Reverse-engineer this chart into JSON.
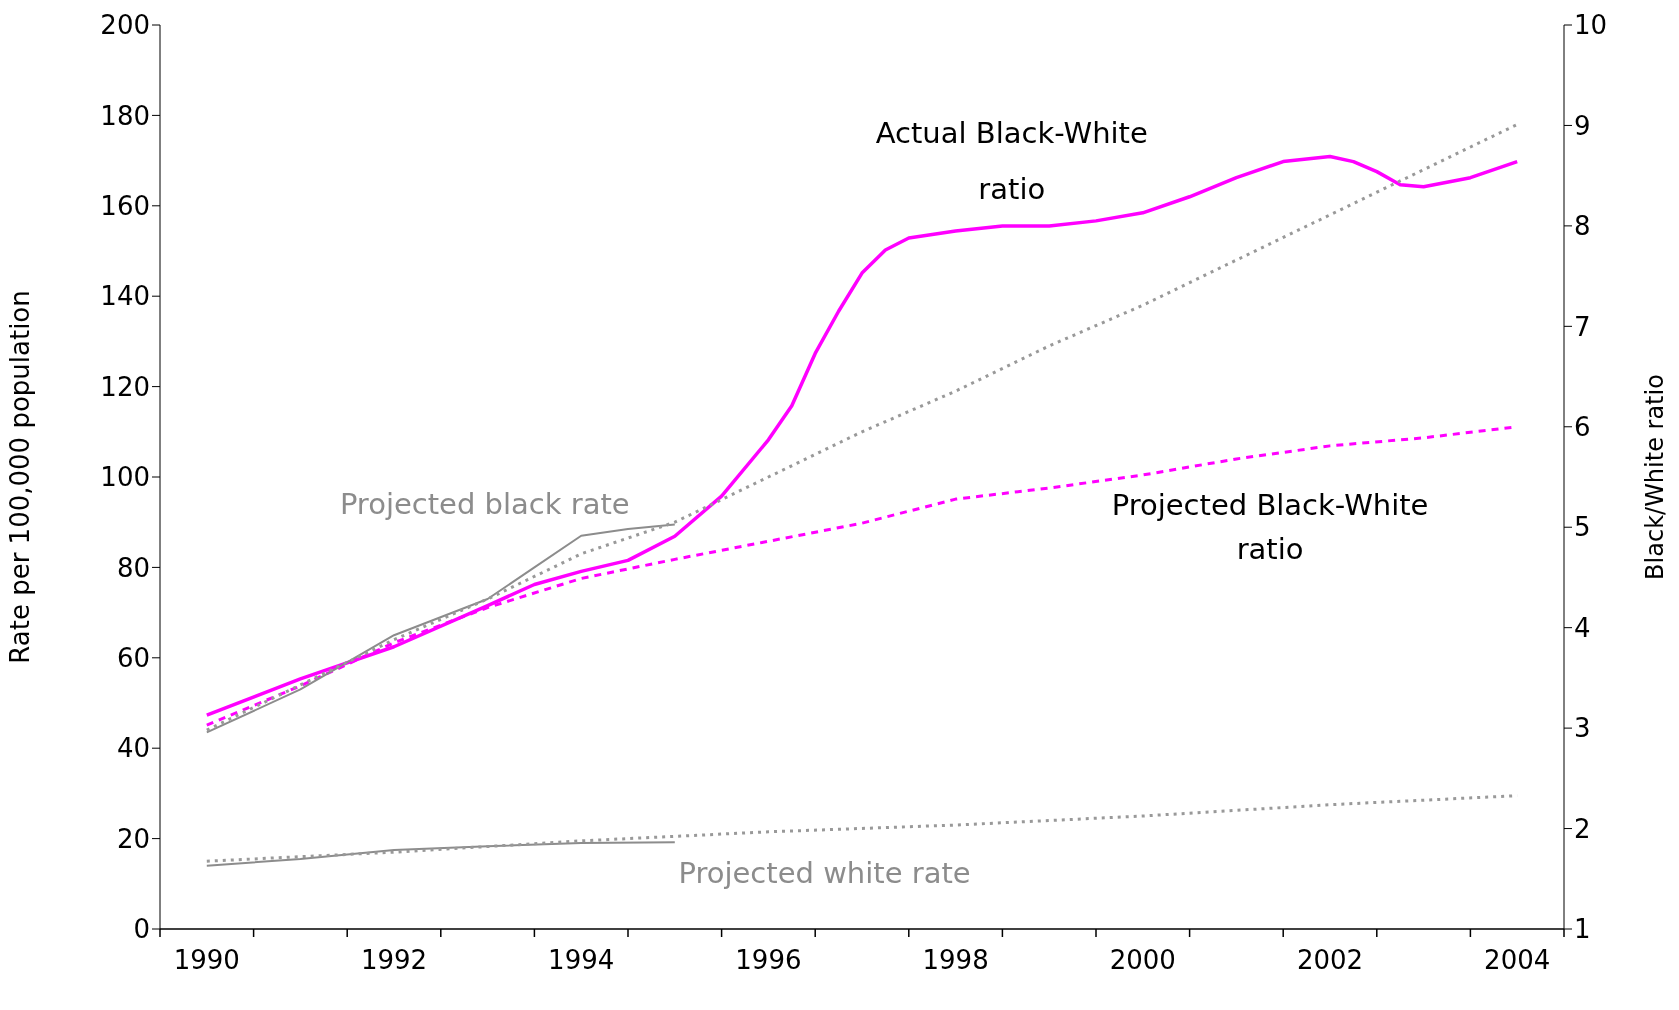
{
  "chart_data": {
    "type": "line",
    "ylabel": "Rate per 100,000 population",
    "y2label": "Black/White ratio",
    "xlim": [
      1989.5,
      2004.5
    ],
    "xticks": [
      {
        "value": 1989.5,
        "label": null
      },
      {
        "value": 1990,
        "label": "1990"
      },
      {
        "value": 1990.5,
        "label": null
      },
      {
        "value": 1991.5,
        "label": null
      },
      {
        "value": 1992,
        "label": "1992"
      },
      {
        "value": 1992.5,
        "label": null
      },
      {
        "value": 1993.5,
        "label": null
      },
      {
        "value": 1994,
        "label": "1994"
      },
      {
        "value": 1994.5,
        "label": null
      },
      {
        "value": 1995.5,
        "label": null
      },
      {
        "value": 1996,
        "label": "1996"
      },
      {
        "value": 1996.5,
        "label": null
      },
      {
        "value": 1997.5,
        "label": null
      },
      {
        "value": 1998,
        "label": "1998"
      },
      {
        "value": 1998.5,
        "label": null
      },
      {
        "value": 1999.5,
        "label": null
      },
      {
        "value": 2000,
        "label": "2000"
      },
      {
        "value": 2000.5,
        "label": null
      },
      {
        "value": 2001.5,
        "label": null
      },
      {
        "value": 2002,
        "label": "2002"
      },
      {
        "value": 2002.5,
        "label": null
      },
      {
        "value": 2003.5,
        "label": null
      },
      {
        "value": 2004,
        "label": "2004"
      },
      {
        "value": 2004.5,
        "label": null
      }
    ],
    "ylim": [
      0,
      200
    ],
    "yticks": [
      0,
      20,
      40,
      60,
      80,
      100,
      120,
      140,
      160,
      180,
      200
    ],
    "y2lim": [
      1,
      10
    ],
    "y2ticks": [
      1,
      2,
      3,
      4,
      5,
      6,
      7,
      8,
      9,
      10
    ],
    "grid": false,
    "legend": false,
    "marker": "none",
    "series": [
      {
        "color": "#ff00ff",
        "axis": "y2",
        "line_style": "solid",
        "x": [
          1990,
          1991,
          1992,
          1993,
          1993.5,
          1994,
          1994.5,
          1995,
          1995.5,
          1996,
          1996.25,
          1996.5,
          1996.75,
          1997,
          1997.25,
          1997.5,
          1998,
          1998.5,
          1999,
          1999.5,
          2000,
          2000.5,
          2001,
          2001.5,
          2002,
          2002.25,
          2002.5,
          2002.75,
          2003,
          2003.5,
          2004
        ],
        "values": [
          3.13,
          3.49,
          3.81,
          4.22,
          4.43,
          4.56,
          4.67,
          4.91,
          5.31,
          5.87,
          6.21,
          6.73,
          7.15,
          7.53,
          7.76,
          7.88,
          7.95,
          8.0,
          8.0,
          8.05,
          8.13,
          8.29,
          8.48,
          8.64,
          8.69,
          8.64,
          8.54,
          8.41,
          8.39,
          8.48,
          8.64
        ]
      },
      {
        "color": "#ff00ff",
        "axis": "y2",
        "line_style": "dashed",
        "x": [
          1990,
          1991,
          1992,
          1993,
          1994,
          1995,
          1996,
          1997,
          1998,
          1999,
          2000,
          2001,
          2002,
          2003,
          2004
        ],
        "values": [
          3.03,
          3.42,
          3.85,
          4.2,
          4.49,
          4.68,
          4.86,
          5.04,
          5.28,
          5.39,
          5.52,
          5.68,
          5.81,
          5.89,
          6.0
        ]
      },
      {
        "color": "#8c8c8c",
        "line_style": "solid",
        "x": [
          1990,
          1991,
          1992,
          1993,
          1993.5,
          1994,
          1994.5,
          1995
        ],
        "values": [
          43.5,
          53,
          65,
          73,
          80,
          87,
          88.5,
          89.5
        ]
      },
      {
        "color": "#999999",
        "line_style": "dotted",
        "x": [
          1990,
          1991,
          1992,
          1993,
          1994,
          1995,
          1996,
          1997,
          1998,
          1999,
          2000,
          2001,
          2002,
          2003,
          2004
        ],
        "values": [
          44,
          54,
          64,
          73,
          83,
          90,
          100,
          110,
          119,
          129,
          138,
          148,
          158,
          168,
          178
        ]
      },
      {
        "color": "#8c8c8c",
        "line_style": "solid",
        "x": [
          1990,
          1991,
          1992,
          1993,
          1994,
          1995
        ],
        "values": [
          14,
          15.5,
          17.5,
          18.3,
          19,
          19.2
        ]
      },
      {
        "color": "#999999",
        "line_style": "dotted",
        "x": [
          1990,
          1992,
          1994,
          1996,
          1998,
          2000,
          2002,
          2004
        ],
        "values": [
          15,
          17,
          19.5,
          21.5,
          23,
          25,
          27.5,
          29.5
        ]
      }
    ],
    "annotations": [
      "Actual Black-White ratio",
      "Projected Black-White ratio",
      "Projected black rate",
      "Projected white rate"
    ]
  }
}
